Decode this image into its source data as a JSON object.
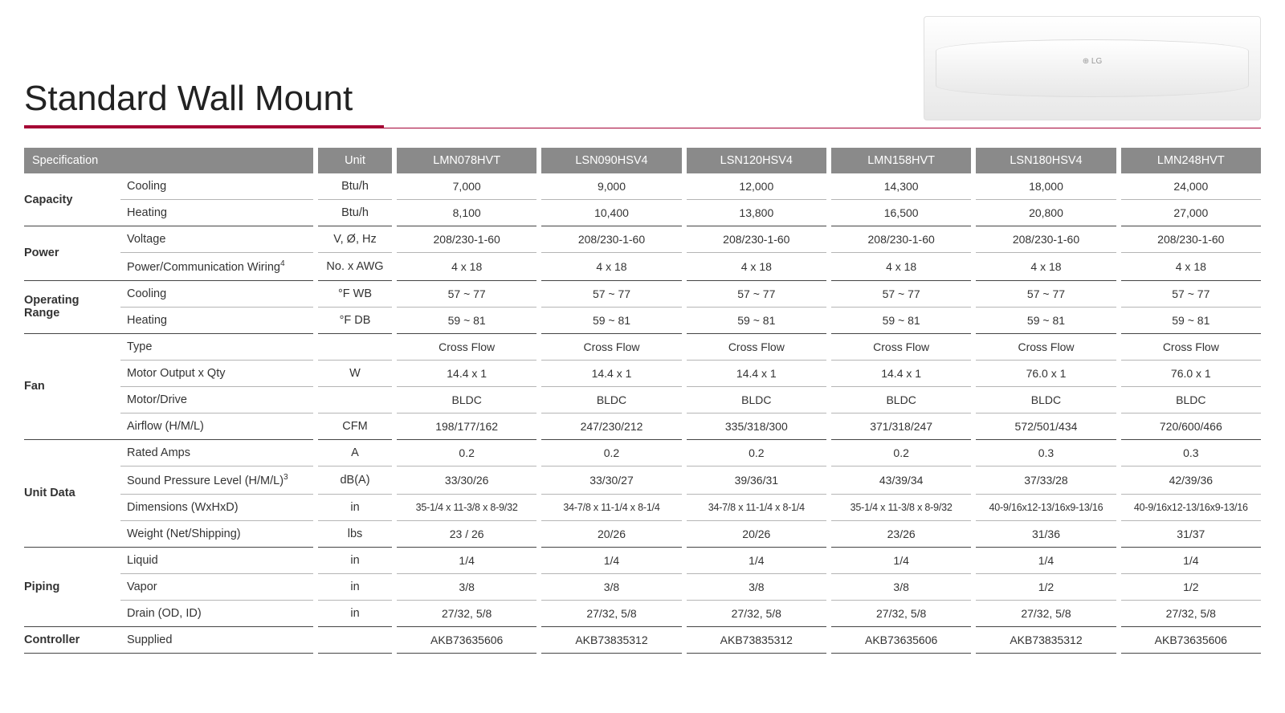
{
  "title": "Standard Wall Mount",
  "accent_color": "#a50034",
  "header_bg": "#8a8a8a",
  "header_fg": "#ffffff",
  "spec_label": "Specification",
  "unit_label": "Unit",
  "table": {
    "models": [
      "LMN078HVT",
      "LSN090HSV4",
      "LSN120HSV4",
      "LMN158HVT",
      "LSN180HSV4",
      "LMN248HVT"
    ],
    "groups": [
      {
        "category": "Capacity",
        "rows": [
          {
            "label": "Cooling",
            "unit": "Btu/h",
            "values": [
              "7,000",
              "9,000",
              "12,000",
              "14,300",
              "18,000",
              "24,000"
            ]
          },
          {
            "label": "Heating",
            "unit": "Btu/h",
            "values": [
              "8,100",
              "10,400",
              "13,800",
              "16,500",
              "20,800",
              "27,000"
            ]
          }
        ]
      },
      {
        "category": "Power",
        "rows": [
          {
            "label": "Voltage",
            "unit": "V, Ø, Hz",
            "values": [
              "208/230-1-60",
              "208/230-1-60",
              "208/230-1-60",
              "208/230-1-60",
              "208/230-1-60",
              "208/230-1-60"
            ]
          },
          {
            "label": "Power/Communication Wiring",
            "sup": "4",
            "unit": "No. x AWG",
            "values": [
              "4 x 18",
              "4 x 18",
              "4 x 18",
              "4 x 18",
              "4 x 18",
              "4 x 18"
            ]
          }
        ]
      },
      {
        "category": "Operating Range",
        "rows": [
          {
            "label": "Cooling",
            "unit": "°F WB",
            "values": [
              "57 ~ 77",
              "57 ~ 77",
              "57 ~ 77",
              "57 ~ 77",
              "57 ~ 77",
              "57 ~ 77"
            ]
          },
          {
            "label": "Heating",
            "unit": "°F DB",
            "values": [
              "59 ~ 81",
              "59 ~ 81",
              "59 ~ 81",
              "59 ~ 81",
              "59 ~ 81",
              "59 ~ 81"
            ]
          }
        ]
      },
      {
        "category": "Fan",
        "rows": [
          {
            "label": "Type",
            "unit": "",
            "values": [
              "Cross Flow",
              "Cross Flow",
              "Cross Flow",
              "Cross Flow",
              "Cross Flow",
              "Cross Flow"
            ]
          },
          {
            "label": "Motor Output x Qty",
            "unit": "W",
            "values": [
              "14.4 x 1",
              "14.4 x 1",
              "14.4 x 1",
              "14.4 x 1",
              "76.0 x 1",
              "76.0 x 1"
            ]
          },
          {
            "label": "Motor/Drive",
            "unit": "",
            "values": [
              "BLDC",
              "BLDC",
              "BLDC",
              "BLDC",
              "BLDC",
              "BLDC"
            ]
          },
          {
            "label": "Airflow (H/M/L)",
            "unit": "CFM",
            "values": [
              "198/177/162",
              "247/230/212",
              "335/318/300",
              "371/318/247",
              "572/501/434",
              "720/600/466"
            ]
          }
        ]
      },
      {
        "category": "Unit Data",
        "rows": [
          {
            "label": "Rated Amps",
            "unit": "A",
            "values": [
              "0.2",
              "0.2",
              "0.2",
              "0.2",
              "0.3",
              "0.3"
            ]
          },
          {
            "label": "Sound Pressure Level (H/M/L)",
            "sup": "3",
            "unit": "dB(A)",
            "values": [
              "33/30/26",
              "33/30/27",
              "39/36/31",
              "43/39/34",
              "37/33/28",
              "42/39/36"
            ]
          },
          {
            "label": "Dimensions (WxHxD)",
            "unit": "in",
            "small": true,
            "values": [
              "35-1/4 x 11-3/8 x 8-9/32",
              "34-7/8 x 11-1/4 x 8-1/4",
              "34-7/8 x 11-1/4 x 8-1/4",
              "35-1/4 x 11-3/8 x 8-9/32",
              "40-9/16x12-13/16x9-13/16",
              "40-9/16x12-13/16x9-13/16"
            ]
          },
          {
            "label": "Weight (Net/Shipping)",
            "unit": "lbs",
            "values": [
              "23 / 26",
              "20/26",
              "20/26",
              "23/26",
              "31/36",
              "31/37"
            ]
          }
        ]
      },
      {
        "category": "Piping",
        "rows": [
          {
            "label": "Liquid",
            "unit": "in",
            "values": [
              "1/4",
              "1/4",
              "1/4",
              "1/4",
              "1/4",
              "1/4"
            ]
          },
          {
            "label": "Vapor",
            "unit": "in",
            "values": [
              "3/8",
              "3/8",
              "3/8",
              "3/8",
              "1/2",
              "1/2"
            ]
          },
          {
            "label": "Drain (OD, ID)",
            "unit": "in",
            "values": [
              "27/32, 5/8",
              "27/32, 5/8",
              "27/32, 5/8",
              "27/32, 5/8",
              "27/32, 5/8",
              "27/32, 5/8"
            ]
          }
        ]
      },
      {
        "category": "Controller",
        "rows": [
          {
            "label": "Supplied",
            "unit": "",
            "values": [
              "AKB73635606",
              "AKB73835312",
              "AKB73835312",
              "AKB73635606",
              "AKB73835312",
              "AKB73635606"
            ]
          }
        ]
      }
    ]
  }
}
